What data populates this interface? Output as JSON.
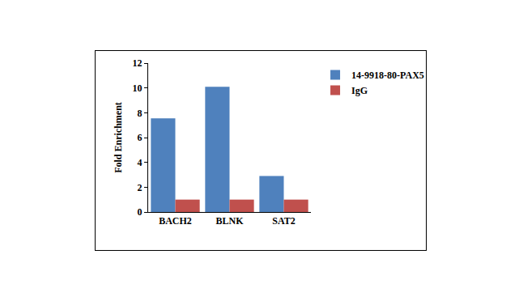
{
  "chart_data": {
    "type": "bar",
    "categories": [
      "BACH2",
      "BLNK",
      "SAT2"
    ],
    "series": [
      {
        "name": "14-9918-80-PAX5",
        "color": "#4f81bd",
        "values": [
          7.55,
          10.1,
          2.9
        ]
      },
      {
        "name": "IgG",
        "color": "#c0504d",
        "values": [
          1,
          1,
          1
        ]
      }
    ],
    "y_label": "Fold Enrichment",
    "ylim": [
      0,
      12
    ],
    "yticks": [
      0,
      2,
      4,
      6,
      8,
      10,
      12
    ],
    "grid": false,
    "legend": "right"
  }
}
